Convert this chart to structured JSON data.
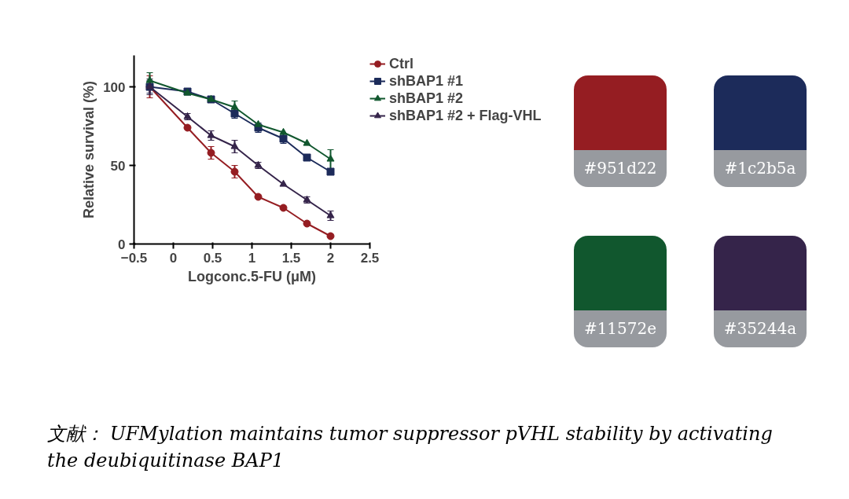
{
  "chart_data": [
    {
      "type": "line",
      "xlabel": "Logconc.5-FU (μM)",
      "ylabel": "Relative survival (%)",
      "x": [
        -0.3,
        0.18,
        0.48,
        0.78,
        1.08,
        1.4,
        1.7,
        2.0
      ],
      "xlim": [
        -0.5,
        2.5
      ],
      "xticks": [
        {
          "value": -0.5,
          "label": "−0.5"
        },
        0.0,
        0.5,
        1.0,
        1.5,
        2.0,
        2.5
      ],
      "ylim": [
        0,
        120
      ],
      "yticks": [
        0,
        50,
        100
      ],
      "grid": false,
      "legend": "top right",
      "series": [
        {
          "name": "Ctrl",
          "color": "#951d22",
          "marker": "circle",
          "values": [
            100,
            74,
            58,
            46,
            30,
            23,
            13,
            5
          ],
          "errors": [
            7,
            null,
            4,
            4,
            null,
            null,
            null,
            null
          ]
        },
        {
          "name": "shBAP1 #1",
          "color": "#1c2b5a",
          "marker": "square",
          "values": [
            100,
            97,
            92,
            83,
            74,
            67,
            55,
            46
          ],
          "errors": [
            4,
            null,
            null,
            3,
            3,
            3,
            null,
            2
          ]
        },
        {
          "name": "shBAP1 #2",
          "color": "#11572e",
          "marker": "triangle",
          "values": [
            104,
            96,
            92,
            87,
            76,
            71,
            64,
            54
          ],
          "errors": [
            5,
            null,
            null,
            4,
            null,
            null,
            null,
            6
          ]
        },
        {
          "name": "shBAP1 #2 + Flag-VHL",
          "color": "#35244a",
          "marker": "triangle",
          "values": [
            100,
            81,
            69,
            62,
            50,
            38,
            28,
            18
          ],
          "errors": [
            5,
            2,
            3,
            4,
            2,
            null,
            2,
            3
          ]
        }
      ],
      "annotations": [
        "文献：  UFMylation maintains tumor suppressor pVHL stability by activating the deubiquitinase BAP1"
      ]
    },
    {
      "type": "other",
      "annotations": [
        "#951d22",
        "#1c2b5a",
        "#11572e",
        "#35244a"
      ],
      "colors": [
        "#951d22",
        "#1c2b5a",
        "#11572e",
        "#35244a"
      ]
    }
  ]
}
